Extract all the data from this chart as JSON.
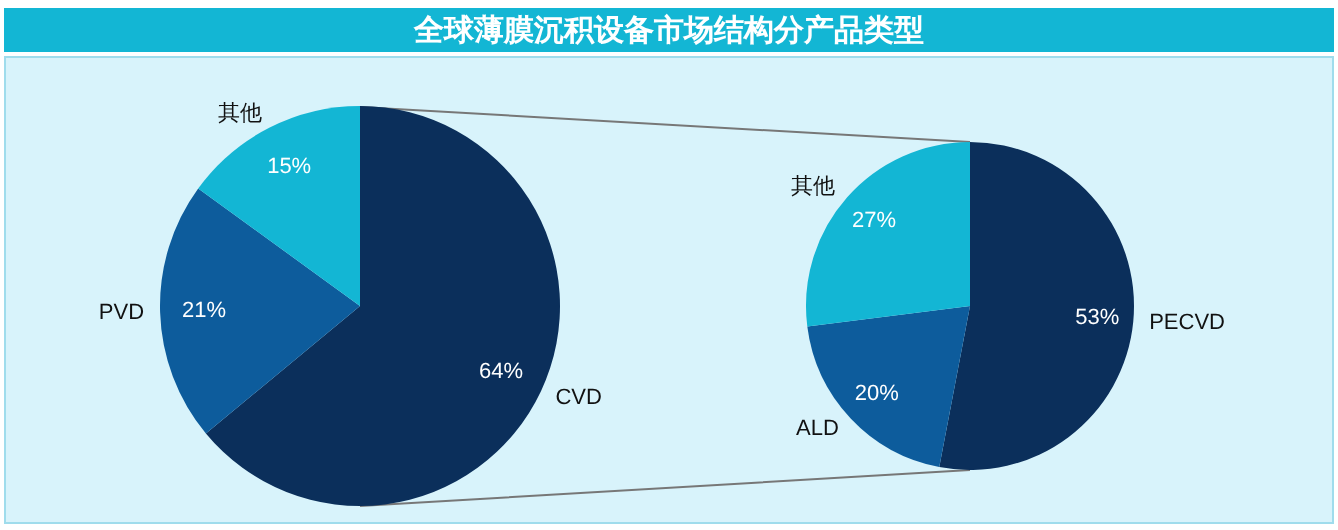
{
  "chart_data": [
    {
      "type": "pie",
      "title": "全球薄膜沉积设备市场结构分产品类型",
      "categories": [
        "CVD",
        "PVD",
        "其他"
      ],
      "values": [
        64,
        21,
        15
      ],
      "value_labels": [
        "64%",
        "21%",
        "15%"
      ],
      "colors": [
        "#0b2f5b",
        "#0d5c9c",
        "#13b6d4"
      ],
      "legend": false
    },
    {
      "type": "pie",
      "categories": [
        "PECVD",
        "ALD",
        "其他"
      ],
      "values": [
        53,
        20,
        27
      ],
      "value_labels": [
        "53%",
        "20%",
        "27%"
      ],
      "colors": [
        "#0b2f5b",
        "#0d5c9c",
        "#13b6d4"
      ],
      "legend": false
    }
  ]
}
